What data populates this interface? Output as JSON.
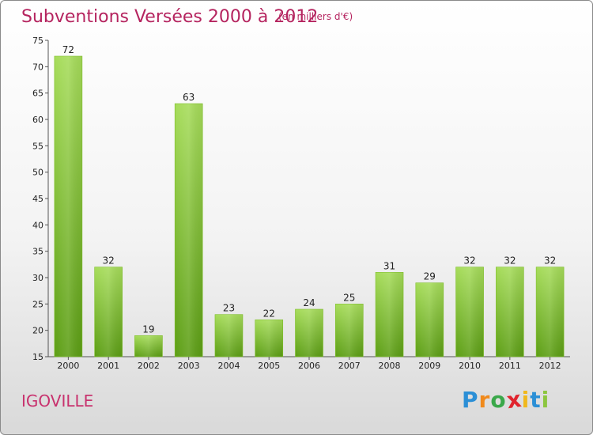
{
  "header": {
    "title": "Subventions Versées 2000 à 2012",
    "subtitle": "(en milliers d'€)"
  },
  "footer": {
    "commune": "IGOVILLE",
    "logo": {
      "letters": [
        "P",
        "r",
        "o",
        "x",
        "i",
        "t",
        "i"
      ],
      "colors": [
        "#2b8fd6",
        "#f08a1c",
        "#3aa84a",
        "#e0242e",
        "#f0b81c",
        "#2b8fd6",
        "#8cc63f"
      ]
    }
  },
  "colors": {
    "bar_light": "#a6dc5a",
    "bar_dark": "#5c9e14",
    "accent": "#b5245f"
  },
  "chart_data": {
    "type": "bar",
    "categories": [
      "2000",
      "2001",
      "2002",
      "2003",
      "2004",
      "2005",
      "2006",
      "2007",
      "2008",
      "2009",
      "2010",
      "2011",
      "2012"
    ],
    "values": [
      72,
      32,
      19,
      63,
      23,
      22,
      24,
      25,
      31,
      29,
      32,
      32,
      32
    ],
    "ylim": [
      15,
      75
    ],
    "yticks": [
      15,
      20,
      25,
      30,
      35,
      40,
      45,
      50,
      55,
      60,
      65,
      70,
      75
    ],
    "grid": false,
    "title": "Subventions Versées 2000 à 2012",
    "xlabel": "",
    "ylabel": ""
  }
}
